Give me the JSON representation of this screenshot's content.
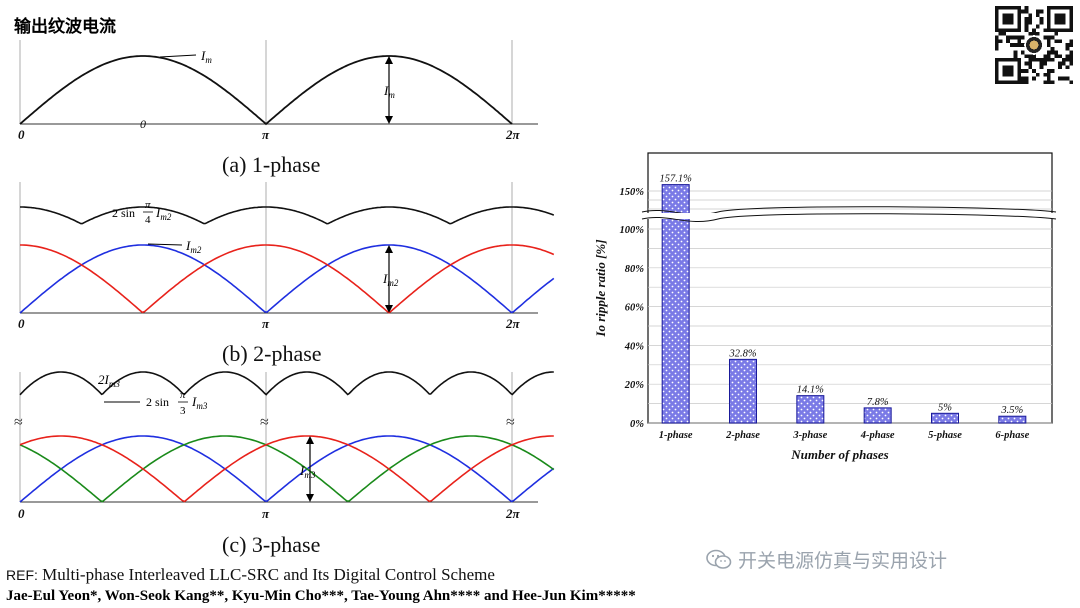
{
  "page_title": "输出纹波电流",
  "captions": {
    "a": "(a) 1-phase",
    "b": "(b) 2-phase",
    "c": "(c) 3-phase"
  },
  "waves": {
    "tick_labels": [
      "0",
      "π",
      "2π"
    ],
    "origin_label": "0",
    "label_im": "I",
    "label_im_sub": "m",
    "label_im2_sub": "m2",
    "label_im3_sub": "m3",
    "label_2im3": "2I",
    "label_2sin_prefix": "2 sin",
    "pi_sym": "π",
    "frac4": "4",
    "frac3": "3",
    "label_Im2": "I",
    "label_Im3": "I",
    "colors": {
      "black": "#111111",
      "red": "#e8221b",
      "blue": "#1f2fe0",
      "green": "#1a8a1a"
    }
  },
  "watermark": "开关电源仿真与实用设计",
  "reference": {
    "label": "REF:",
    "title": "Multi-phase Interleaved LLC-SRC and Its Digital Control Scheme",
    "authors": "Jae-Eul Yeon*, Won-Seok Kang**, Kyu-Min Cho***, Tae-Young Ahn**** and Hee-Jun Kim*****"
  },
  "chart_data": {
    "type": "bar",
    "categories": [
      "1-phase",
      "2-phase",
      "3-phase",
      "4-phase",
      "5-phase",
      "6-phase"
    ],
    "values": [
      157.1,
      32.8,
      14.1,
      7.8,
      5,
      3.5
    ],
    "value_labels": [
      "157.1%",
      "32.8%",
      "14.1%",
      "7.8%",
      "5%",
      "3.5%"
    ],
    "xlabel": "Number of phases",
    "ylabel": "Io ripple ratio [%]",
    "yticks": [
      "0%",
      "20%",
      "40%",
      "60%",
      "80%",
      "100%",
      "150%"
    ],
    "axis_break": [
      100,
      150
    ],
    "grid": true,
    "bar_color": "#7a7ae6"
  }
}
